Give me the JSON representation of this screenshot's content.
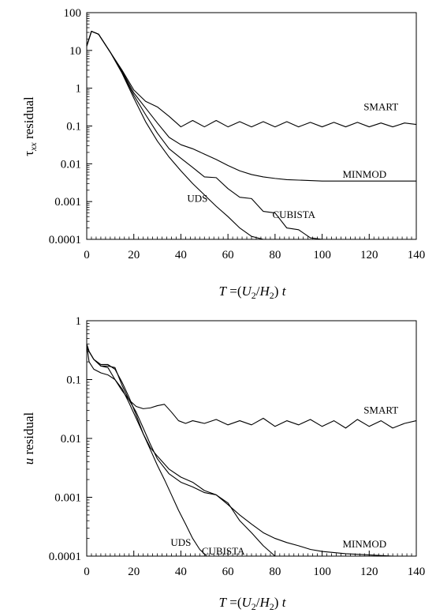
{
  "chart_data": [
    {
      "type": "line",
      "title": "",
      "y_scale": "log",
      "ylabel_parts": {
        "greek": "τ",
        "sub": "xx",
        "rest": " residual"
      },
      "xlabel_parts": {
        "T": "T",
        "eq": " =(",
        "U": "U",
        "s1": "2",
        "slash": "/",
        "H": "H",
        "s2": "2",
        "close": ") ",
        "t": "t"
      },
      "xlim": [
        0,
        140
      ],
      "ylim": [
        0.0001,
        100
      ],
      "x_ticks": [
        0,
        20,
        40,
        60,
        80,
        100,
        120,
        140
      ],
      "x_tick_labels": [
        "0",
        "20",
        "40",
        "60",
        "80",
        "100",
        "120",
        "140"
      ],
      "y_ticks": [
        0.0001,
        0.001,
        0.01,
        0.1,
        1,
        10,
        100
      ],
      "y_tick_labels": [
        "0.0001",
        "0.001",
        "0.01",
        "0.1",
        "1",
        "10",
        "100"
      ],
      "grid": false,
      "series": [
        {
          "name": "SMART",
          "label_at": [
            125,
            0.32
          ],
          "x": [
            0,
            2,
            5,
            10,
            15,
            20,
            25,
            30,
            35,
            40,
            45,
            50,
            55,
            60,
            65,
            70,
            75,
            80,
            85,
            90,
            95,
            100,
            105,
            110,
            115,
            120,
            125,
            130,
            135,
            140
          ],
          "y": [
            13,
            32,
            27,
            9,
            3,
            0.9,
            0.45,
            0.32,
            0.18,
            0.095,
            0.14,
            0.095,
            0.14,
            0.095,
            0.13,
            0.095,
            0.13,
            0.095,
            0.13,
            0.095,
            0.125,
            0.095,
            0.125,
            0.095,
            0.125,
            0.095,
            0.12,
            0.095,
            0.12,
            0.11
          ]
        },
        {
          "name": "MINMOD",
          "label_at": [
            118,
            0.0052
          ],
          "x": [
            0,
            2,
            5,
            10,
            15,
            20,
            25,
            30,
            35,
            40,
            45,
            50,
            55,
            60,
            65,
            70,
            75,
            80,
            85,
            90,
            95,
            100,
            110,
            120,
            130,
            140
          ],
          "y": [
            13,
            32,
            27,
            9,
            2.8,
            0.75,
            0.3,
            0.12,
            0.05,
            0.032,
            0.025,
            0.018,
            0.013,
            0.009,
            0.0065,
            0.0052,
            0.0045,
            0.0041,
            0.0038,
            0.0037,
            0.0036,
            0.0035,
            0.0035,
            0.0035,
            0.0035,
            0.0035
          ]
        },
        {
          "name": "CUBISTA",
          "label_at": [
            88,
            0.00045
          ],
          "x": [
            0,
            2,
            5,
            10,
            15,
            20,
            25,
            30,
            35,
            40,
            45,
            50,
            55,
            60,
            65,
            70,
            75,
            80,
            85,
            90,
            95,
            100,
            103
          ],
          "y": [
            13,
            32,
            27,
            9,
            2.6,
            0.65,
            0.2,
            0.065,
            0.025,
            0.014,
            0.008,
            0.0045,
            0.0043,
            0.0022,
            0.0013,
            0.0012,
            0.00055,
            0.0005,
            0.0002,
            0.00018,
            0.00011,
            0.0001,
            0.0001
          ]
        },
        {
          "name": "UDS",
          "label_at": [
            47,
            0.0012
          ],
          "x": [
            0,
            2,
            5,
            10,
            15,
            20,
            25,
            30,
            35,
            40,
            45,
            50,
            55,
            60,
            65,
            70,
            75
          ],
          "y": [
            13,
            32,
            27,
            9,
            2.5,
            0.55,
            0.13,
            0.04,
            0.015,
            0.0065,
            0.003,
            0.0015,
            0.00075,
            0.0004,
            0.0002,
            0.00012,
            0.0001
          ]
        }
      ]
    },
    {
      "type": "line",
      "title": "",
      "y_scale": "log",
      "ylabel_parts": {
        "var": "u",
        "rest": " residual"
      },
      "xlabel_parts": {
        "T": "T",
        "eq": " =(",
        "U": "U",
        "s1": "2",
        "slash": "/",
        "H": "H",
        "s2": "2",
        "close": ") ",
        "t": "t"
      },
      "xlim": [
        0,
        140
      ],
      "ylim": [
        0.0001,
        1
      ],
      "x_ticks": [
        0,
        20,
        40,
        60,
        80,
        100,
        120,
        140
      ],
      "x_tick_labels": [
        "0",
        "20",
        "40",
        "60",
        "80",
        "100",
        "120",
        "140"
      ],
      "y_ticks": [
        0.0001,
        0.001,
        0.01,
        0.1,
        1
      ],
      "y_tick_labels": [
        "0.0001",
        "0.001",
        "0.01",
        "0.1",
        "1"
      ],
      "grid": false,
      "series": [
        {
          "name": "SMART",
          "label_at": [
            125,
            0.03
          ],
          "x": [
            0,
            1,
            3,
            6,
            9,
            12,
            15,
            18,
            21,
            24,
            27,
            30,
            33,
            36,
            39,
            42,
            45,
            50,
            55,
            60,
            65,
            70,
            75,
            80,
            85,
            90,
            95,
            100,
            105,
            110,
            115,
            120,
            125,
            130,
            135,
            140
          ],
          "y": [
            0.4,
            0.3,
            0.22,
            0.17,
            0.16,
            0.1,
            0.065,
            0.045,
            0.035,
            0.032,
            0.033,
            0.036,
            0.038,
            0.028,
            0.02,
            0.018,
            0.02,
            0.018,
            0.021,
            0.017,
            0.02,
            0.017,
            0.022,
            0.016,
            0.02,
            0.017,
            0.021,
            0.016,
            0.02,
            0.015,
            0.021,
            0.016,
            0.02,
            0.015,
            0.018,
            0.02
          ]
        },
        {
          "name": "MINMOD",
          "label_at": [
            118,
            0.00016
          ],
          "x": [
            0,
            1,
            3,
            6,
            9,
            12,
            15,
            18,
            21,
            24,
            27,
            30,
            35,
            40,
            45,
            50,
            55,
            60,
            65,
            70,
            75,
            80,
            85,
            90,
            95,
            100,
            110,
            120,
            130,
            140
          ],
          "y": [
            0.4,
            0.3,
            0.22,
            0.17,
            0.17,
            0.16,
            0.08,
            0.045,
            0.028,
            0.015,
            0.008,
            0.0045,
            0.0025,
            0.0018,
            0.0015,
            0.0012,
            0.0011,
            0.00075,
            0.0005,
            0.00035,
            0.00025,
            0.0002,
            0.00017,
            0.00015,
            0.00013,
            0.00012,
            0.00011,
            0.000105,
            0.0001,
            0.0001
          ]
        },
        {
          "name": "CUBISTA",
          "label_at": [
            58,
            0.00012
          ],
          "x": [
            0,
            1,
            3,
            6,
            9,
            12,
            15,
            18,
            21,
            24,
            27,
            30,
            35,
            40,
            45,
            50,
            55,
            60,
            65,
            70,
            75,
            80
          ],
          "y": [
            0.4,
            0.3,
            0.22,
            0.18,
            0.18,
            0.15,
            0.09,
            0.05,
            0.025,
            0.012,
            0.007,
            0.005,
            0.003,
            0.0022,
            0.0018,
            0.0013,
            0.0011,
            0.0008,
            0.0004,
            0.00025,
            0.00015,
            0.0001
          ]
        },
        {
          "name": "UDS",
          "label_at": [
            40,
            0.00017
          ],
          "x": [
            0,
            1,
            3,
            6,
            9,
            12,
            15,
            18,
            21,
            24,
            27,
            30,
            33,
            36,
            39,
            42,
            45,
            48,
            51
          ],
          "y": [
            0.4,
            0.2,
            0.15,
            0.13,
            0.12,
            0.1,
            0.07,
            0.04,
            0.022,
            0.012,
            0.0065,
            0.0035,
            0.002,
            0.0011,
            0.0006,
            0.00035,
            0.0002,
            0.00013,
            0.0001
          ]
        }
      ]
    }
  ]
}
